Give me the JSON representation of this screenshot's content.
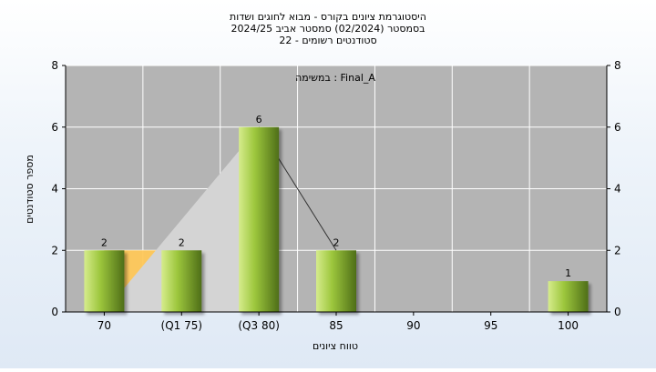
{
  "chart_data": {
    "type": "bar",
    "title_lines": [
      "היסטוגרמת ציונים בקורס - מבוא לחוגים ושדות",
      "בסמסטר  (02/2024)  סמסטר אביב 2024/25",
      "סטודנטים רשומים - 22"
    ],
    "xlabel": "טווח ציונים",
    "ylabel": "מספר סטודנטים",
    "annotation": "במשימה : Final_A",
    "categories": [
      "70",
      "(Q1 75)",
      "(Q3 80)",
      "85",
      "90",
      "95",
      "100"
    ],
    "values": [
      2,
      2,
      6,
      2,
      0,
      0,
      1
    ],
    "value_labels": [
      "2",
      "2",
      "6",
      "2",
      "",
      "",
      "1"
    ],
    "ylim": [
      0,
      8
    ],
    "yticks": [
      0,
      2,
      4,
      6,
      8
    ],
    "grid": true,
    "colors": {
      "plot_bg": "#b4b4b4",
      "grid": "#ffffff",
      "bar_light": "#d6ec8c",
      "bar_mid": "#9cc63c",
      "bar_dark": "#4e6e18",
      "area": "#ffc85a",
      "wedge": "#d4d4d4"
    }
  }
}
